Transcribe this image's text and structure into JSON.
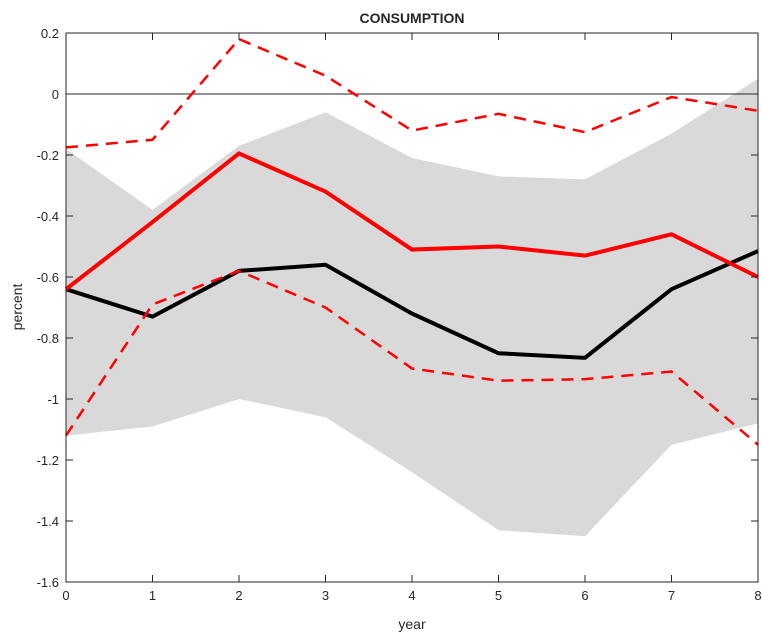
{
  "chart_data": {
    "type": "line",
    "title": "CONSUMPTION",
    "xlabel": "year",
    "ylabel": "percent",
    "xlim": [
      0,
      8
    ],
    "ylim": [
      -1.6,
      0.2
    ],
    "xticks": [
      0,
      1,
      2,
      3,
      4,
      5,
      6,
      7,
      8
    ],
    "yticks": [
      -1.6,
      -1.4,
      -1.2,
      -1,
      -0.8,
      -0.6,
      -0.4,
      -0.2,
      0,
      0.2
    ],
    "xtick_labels": [
      "0",
      "1",
      "2",
      "3",
      "4",
      "5",
      "6",
      "7",
      "8"
    ],
    "ytick_labels": [
      "-1.6",
      "-1.4",
      "-1.2",
      "-1",
      "-0.8",
      "-0.6",
      "-0.4",
      "-0.2",
      "0",
      "0.2"
    ],
    "grid": false,
    "zero_line": 0,
    "x": [
      0,
      1,
      2,
      3,
      4,
      5,
      6,
      7,
      8
    ],
    "band": {
      "color": "#d9d9d9",
      "upper": [
        -0.18,
        -0.38,
        -0.17,
        -0.06,
        -0.21,
        -0.27,
        -0.28,
        -0.13,
        0.05
      ],
      "lower": [
        -1.12,
        -1.09,
        -1.0,
        -1.06,
        -1.24,
        -1.43,
        -1.45,
        -1.15,
        -1.08
      ]
    },
    "series": [
      {
        "color": "#000000",
        "style": "solid",
        "values": [
          -0.64,
          -0.73,
          -0.58,
          -0.56,
          -0.72,
          -0.85,
          -0.865,
          -0.64,
          -0.515
        ]
      },
      {
        "color": "#ff0000",
        "style": "solid",
        "values": [
          -0.64,
          -0.42,
          -0.195,
          -0.32,
          -0.51,
          -0.5,
          -0.53,
          -0.46,
          -0.6
        ]
      },
      {
        "color": "#ff0000",
        "style": "dashed",
        "values": [
          -0.175,
          -0.15,
          0.18,
          0.06,
          -0.12,
          -0.065,
          -0.125,
          -0.01,
          -0.055
        ]
      },
      {
        "color": "#ff0000",
        "style": "dashed",
        "values": [
          -1.12,
          -0.69,
          -0.58,
          -0.7,
          -0.9,
          -0.94,
          -0.935,
          -0.91,
          -1.15
        ]
      }
    ]
  }
}
